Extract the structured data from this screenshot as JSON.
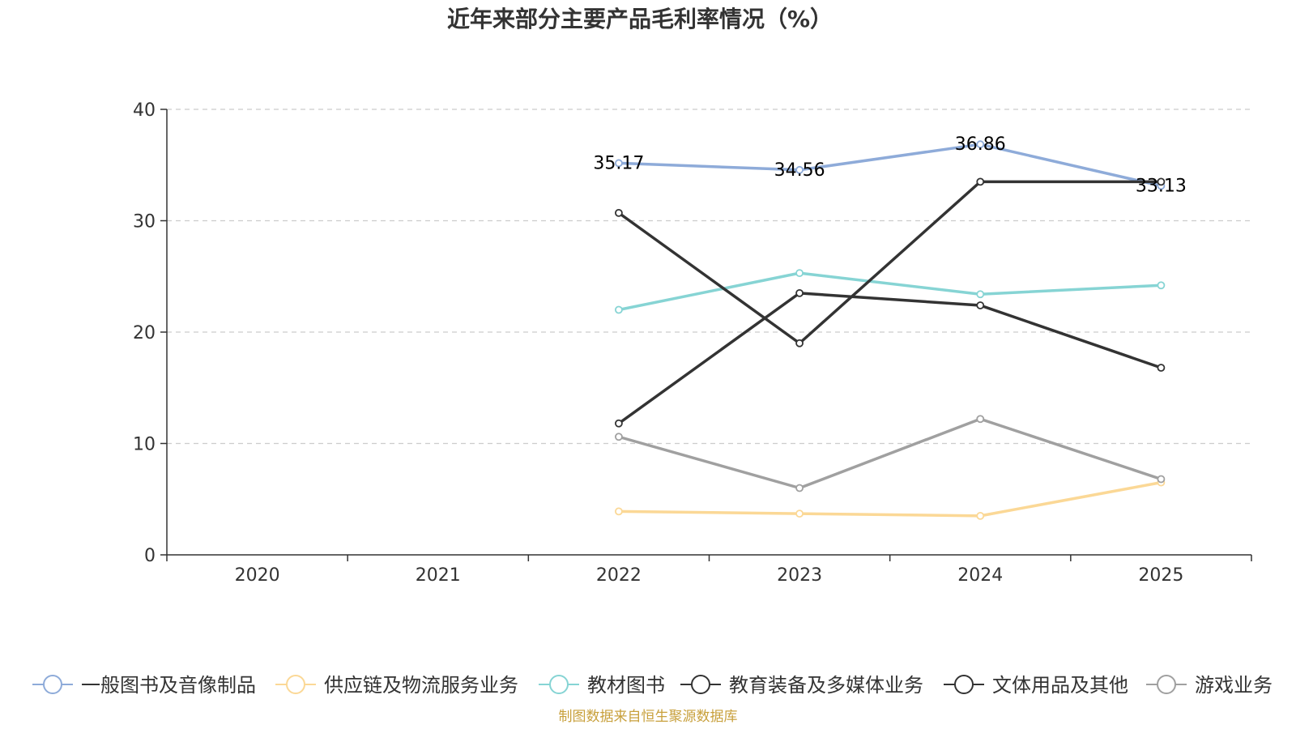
{
  "chart_data": {
    "type": "line",
    "title": "近年来部分主要产品毛利率情况（%）",
    "xlabel": "",
    "ylabel": "",
    "categories": [
      "2020",
      "2021",
      "2022",
      "2023",
      "2024",
      "2025"
    ],
    "ylim": [
      0,
      40
    ],
    "yticks": [
      0,
      10,
      20,
      30,
      40
    ],
    "grid": true,
    "legend_position": "bottom",
    "series": [
      {
        "name": "一般图书及音像制品",
        "color": "#8eabd9",
        "values": [
          null,
          null,
          35.17,
          34.56,
          36.86,
          33.13
        ],
        "labels": [
          "",
          "",
          "35.17",
          "34.56",
          "36.86",
          "33.13"
        ]
      },
      {
        "name": "供应链及物流服务业务",
        "color": "#fbd896",
        "values": [
          null,
          null,
          3.9,
          3.7,
          3.5,
          6.5
        ]
      },
      {
        "name": "教材图书",
        "color": "#86d4d4",
        "values": [
          null,
          null,
          22.0,
          25.3,
          23.4,
          24.2
        ]
      },
      {
        "name": "教育装备及多媒体业务",
        "color": "#333333",
        "values": [
          null,
          null,
          30.7,
          19.0,
          33.5,
          33.5
        ]
      },
      {
        "name": "文体用品及其他",
        "color": "#333333",
        "values": [
          null,
          null,
          11.8,
          23.5,
          22.4,
          16.8
        ]
      },
      {
        "name": "游戏业务",
        "color": "#a0a0a0",
        "values": [
          null,
          null,
          10.6,
          6.0,
          12.2,
          6.8
        ]
      }
    ],
    "source": "制图数据来自恒生聚源数据库"
  }
}
